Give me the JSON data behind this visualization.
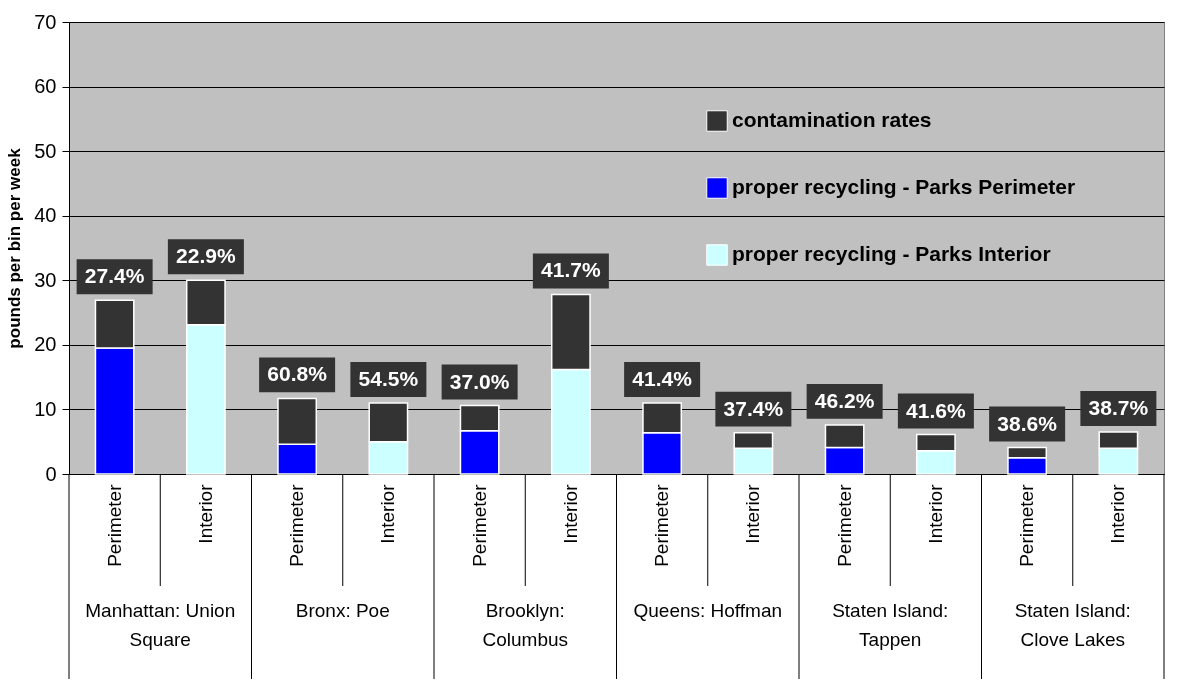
{
  "chart_data": {
    "type": "bar",
    "stacked": true,
    "ylabel": "pounds per bin per week",
    "categories": [
      "Perimeter",
      "Interior",
      "Perimeter",
      "Interior",
      "Perimeter",
      "Interior",
      "Perimeter",
      "Interior",
      "Perimeter",
      "Interior",
      "Perimeter",
      "Interior"
    ],
    "annotations": [
      "Manhattan: Union Square",
      "Bronx: Poe",
      "Brooklyn: Columbus",
      "Queens: Hoffman",
      "Staten Island: Tappen",
      "Staten Island: Clove Lakes",
      {
        "text": "27.4%",
        "y": 26.9
      },
      {
        "text": "22.9%",
        "y": 30.0
      },
      {
        "text": "60.8%",
        "y": 11.7
      },
      {
        "text": "54.5%",
        "y": 11.0
      },
      {
        "text": "37.0%",
        "y": 10.6
      },
      {
        "text": "41.7%",
        "y": 27.8
      },
      {
        "text": "41.4%",
        "y": 11.0
      },
      {
        "text": "37.4%",
        "y": 6.4
      },
      {
        "text": "46.2%",
        "y": 7.6
      },
      {
        "text": "41.6%",
        "y": 6.1
      },
      {
        "text": "38.6%",
        "y": 4.1
      },
      {
        "text": "38.7%",
        "y": 6.5
      }
    ],
    "ylim": [
      0,
      70
    ],
    "yticks": [
      0,
      10,
      20,
      30,
      40,
      50,
      60,
      70
    ],
    "grid": "y",
    "legend": "top right",
    "series": [
      {
        "name": "proper recycling - Parks Interior",
        "color": "#ccffff",
        "values": [
          null,
          23.1,
          null,
          5.0,
          null,
          16.2,
          null,
          4.0,
          null,
          3.6,
          null,
          4.0
        ]
      },
      {
        "name": "proper recycling - Parks Perimeter",
        "color": "#0000ff",
        "values": [
          19.5,
          null,
          4.6,
          null,
          6.7,
          null,
          6.4,
          null,
          4.1,
          null,
          2.5,
          null
        ]
      },
      {
        "name": "contamination rates",
        "color": "#333333",
        "values": [
          7.4,
          6.9,
          7.1,
          6.0,
          3.9,
          11.6,
          4.6,
          2.4,
          3.5,
          2.5,
          1.6,
          2.5
        ]
      }
    ]
  }
}
